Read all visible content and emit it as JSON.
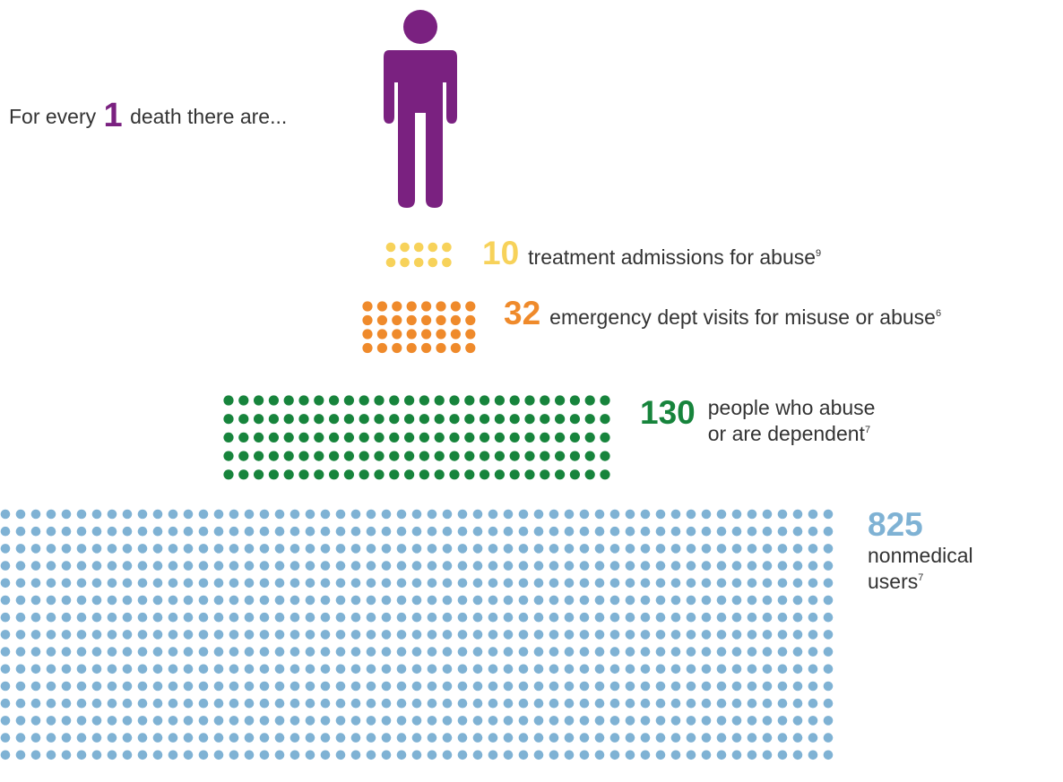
{
  "intro": {
    "prefix": "For every",
    "number": "1",
    "suffix": "death there are..."
  },
  "colors": {
    "person": "#7a2180"
  },
  "chart_data": {
    "type": "dot-matrix",
    "title": "",
    "series": [
      {
        "value": 10,
        "number_label": "10",
        "description": "treatment admissions for abuse",
        "footnote": "9",
        "color": "#f7d25a",
        "grid": {
          "cols": 5,
          "rows": 2
        }
      },
      {
        "value": 32,
        "number_label": "32",
        "description": "emergency dept visits for misuse or abuse",
        "footnote": "6",
        "color": "#ef8a2b",
        "grid": {
          "cols": 8,
          "rows": 4
        }
      },
      {
        "value": 130,
        "number_label": "130",
        "description": "people who abuse\nor are dependent",
        "footnote": "7",
        "color": "#17843c",
        "grid": {
          "cols": 26,
          "rows": 5
        }
      },
      {
        "value": 825,
        "number_label": "825",
        "description": "nonmedical\nusers",
        "footnote": "7",
        "color": "#7fb2d4",
        "grid": {
          "cols": 55,
          "rows": 15
        }
      }
    ]
  }
}
